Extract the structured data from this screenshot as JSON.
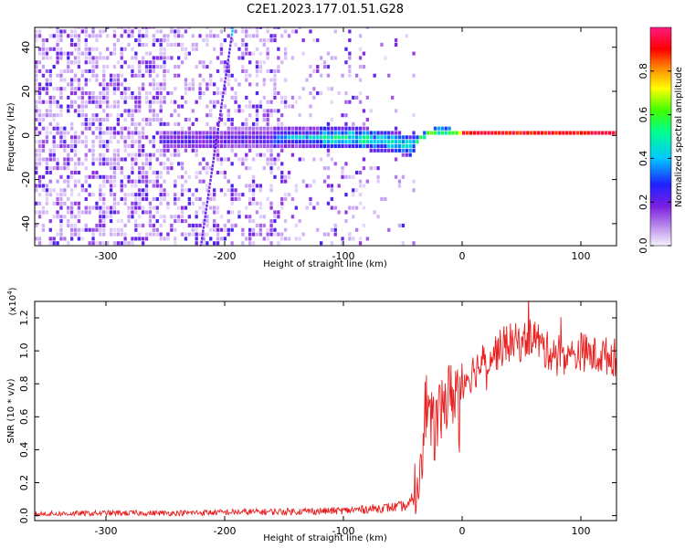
{
  "figure_title": "C2E1.2023.177.01.51.G28",
  "chart_data": [
    {
      "type": "heatmap",
      "title": "",
      "xlabel": "Height of straight line (km)",
      "ylabel": "Frequency (Hz)",
      "xlim": [
        -360,
        130
      ],
      "ylim": [
        -50,
        49
      ],
      "x_ticks": [
        -300,
        -200,
        -100,
        0,
        100
      ],
      "y_ticks": [
        -40,
        -20,
        0,
        20,
        40
      ],
      "x_tick_labels": [
        "-300",
        "-200",
        "-100",
        "0",
        "100"
      ],
      "y_tick_labels": [
        "-40",
        "-20",
        "0",
        "20",
        "40"
      ],
      "grid": false,
      "colorbar": {
        "label": "Normalized spectral amplitude",
        "range": [
          0.0,
          1.0
        ],
        "ticks": [
          0.0,
          0.2,
          0.4,
          0.6,
          0.8
        ],
        "tick_labels": [
          "0.0",
          "0.2",
          "0.4",
          "0.6",
          "0.8"
        ],
        "colormap": [
          "#f5f0ff",
          "#c9a6f5",
          "#8a2be2",
          "#2020ff",
          "#00c8ff",
          "#00ff80",
          "#40ff00",
          "#ffff00",
          "#ff8000",
          "#ff0000",
          "#ff1a80"
        ]
      },
      "features": {
        "signal_center_freq": [
          [
            -250,
            -3
          ],
          [
            -200,
            -3
          ],
          [
            -150,
            -2
          ],
          [
            -100,
            -2
          ],
          [
            -80,
            -3
          ],
          [
            -60,
            -4
          ],
          [
            -45,
            -6
          ],
          [
            -38,
            -3
          ],
          [
            -30,
            0
          ],
          [
            -20,
            1
          ],
          [
            0,
            0
          ],
          [
            50,
            0
          ],
          [
            130,
            0
          ]
        ],
        "interference_line": [
          [
            -220,
            -50
          ],
          [
            -193,
            49
          ]
        ]
      }
    },
    {
      "type": "line",
      "title": "",
      "xlabel": "Height of straight line (km)",
      "ylabel": "SNR (10 * v/v)",
      "scale_label": "(x10",
      "scale_exponent": "4",
      "scale_suffix": ")",
      "xlim": [
        -360,
        130
      ],
      "ylim": [
        -0.03,
        1.3
      ],
      "x_ticks": [
        -300,
        -200,
        -100,
        0,
        100
      ],
      "y_ticks": [
        0.0,
        0.2,
        0.4,
        0.6,
        0.8,
        1.0,
        1.2
      ],
      "x_tick_labels": [
        "-300",
        "-200",
        "-100",
        "0",
        "100"
      ],
      "y_tick_labels": [
        "0.0",
        "0.2",
        "0.4",
        "0.6",
        "0.8",
        "1.0",
        "1.2"
      ],
      "grid": false,
      "color": "#e82020",
      "series": [
        {
          "x": [
            -360,
            -300,
            -250,
            -200,
            -150,
            -100,
            -80,
            -60,
            -45,
            -38,
            -33,
            -30,
            -25,
            -20,
            -15,
            -10,
            -5,
            0,
            10,
            20,
            30,
            40,
            50,
            60,
            70,
            80,
            90,
            100,
            110,
            120,
            130
          ],
          "values": [
            0.01,
            0.015,
            0.015,
            0.02,
            0.025,
            0.03,
            0.04,
            0.05,
            0.06,
            0.15,
            0.5,
            0.7,
            0.5,
            0.6,
            0.7,
            0.72,
            0.78,
            0.82,
            0.88,
            0.95,
            1.0,
            1.05,
            1.05,
            1.1,
            1.0,
            1.0,
            0.95,
            1.0,
            0.97,
            0.97,
            0.96
          ]
        }
      ]
    }
  ]
}
